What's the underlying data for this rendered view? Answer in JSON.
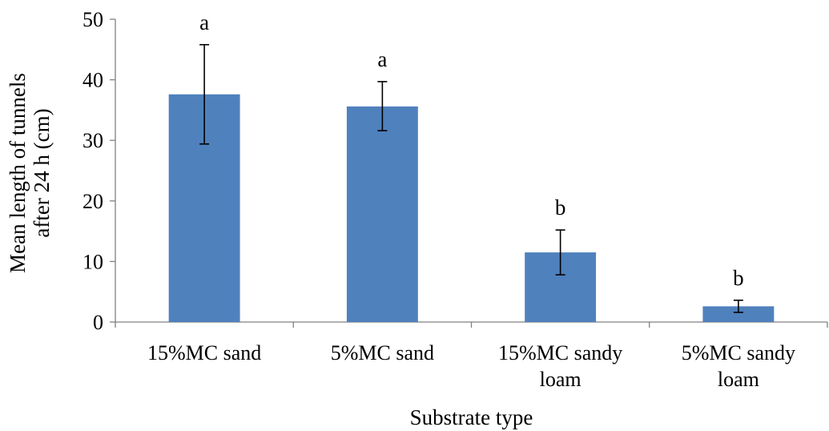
{
  "chart_data": {
    "type": "bar",
    "title": "",
    "xlabel": "Substrate type",
    "ylabel_lines": [
      "Mean length of tunnels",
      "after 24 h (cm)"
    ],
    "categories": [
      [
        "15%MC sand"
      ],
      [
        "5%MC sand"
      ],
      [
        "15%MC sandy",
        "loam"
      ],
      [
        "5%MC sandy",
        "loam"
      ]
    ],
    "values": [
      37.6,
      35.6,
      11.5,
      2.6
    ],
    "error_low": [
      29.4,
      31.6,
      7.8,
      1.6
    ],
    "error_high": [
      45.8,
      39.7,
      15.2,
      3.6
    ],
    "significance": [
      "a",
      "a",
      "b",
      "b"
    ],
    "ylim": [
      0,
      50
    ],
    "yticks": [
      0,
      10,
      20,
      30,
      40,
      50
    ],
    "grid": false,
    "legend": "none",
    "bar_color": "#4F81BD"
  }
}
